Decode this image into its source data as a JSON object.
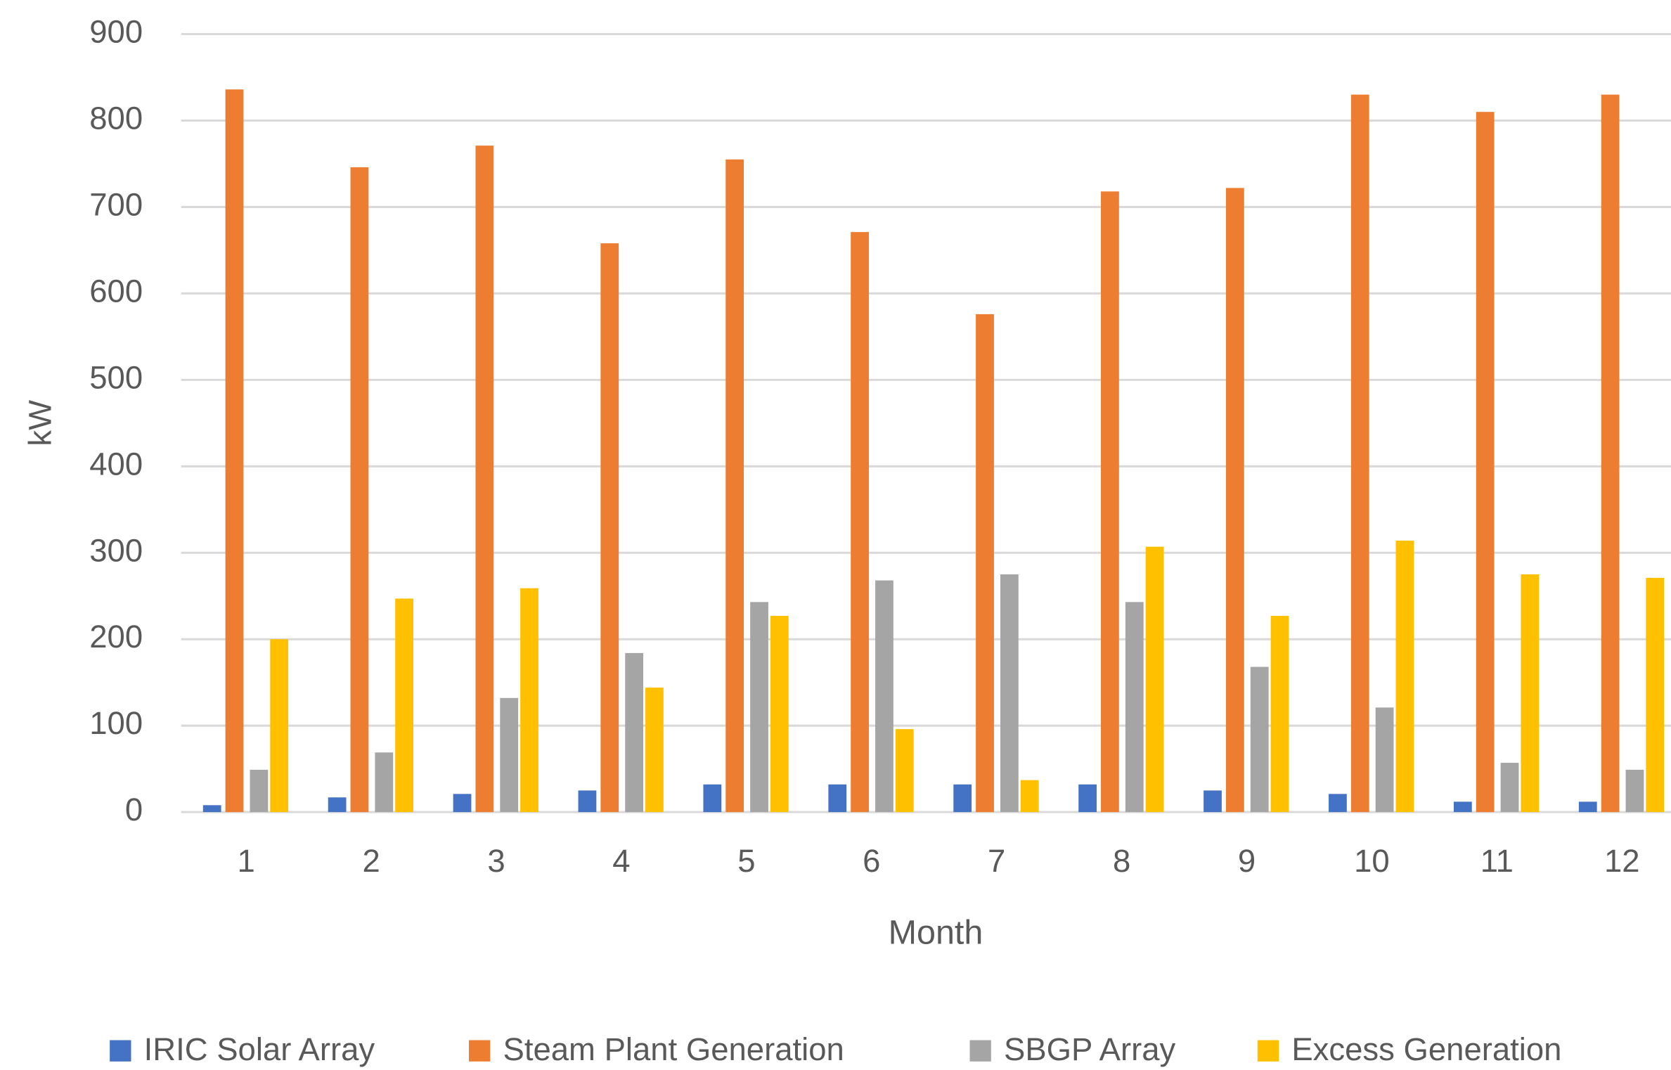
{
  "chart_data": {
    "type": "bar",
    "x_label": "Month",
    "y_label": "kW",
    "categories": [
      "1",
      "2",
      "3",
      "4",
      "5",
      "6",
      "7",
      "8",
      "9",
      "10",
      "11",
      "12"
    ],
    "series": [
      {
        "name": "IRIC Solar Array",
        "color": "#4472c4",
        "values": [
          8,
          17,
          21,
          25,
          32,
          32,
          32,
          32,
          25,
          21,
          12,
          12
        ]
      },
      {
        "name": "Steam Plant Generation",
        "color": "#ed7d31",
        "values": [
          836,
          746,
          771,
          658,
          755,
          671,
          576,
          718,
          722,
          830,
          810,
          830
        ]
      },
      {
        "name": "SBGP Array",
        "color": "#a5a5a5",
        "values": [
          49,
          69,
          132,
          184,
          243,
          268,
          275,
          243,
          168,
          121,
          57,
          49
        ]
      },
      {
        "name": "Excess Generation",
        "color": "#ffc000",
        "values": [
          200,
          247,
          259,
          144,
          227,
          96,
          37,
          307,
          227,
          314,
          275,
          271
        ]
      }
    ],
    "ylim": [
      0,
      900
    ],
    "yticks": [
      0,
      100,
      200,
      300,
      400,
      500,
      600,
      700,
      800,
      900
    ],
    "grid": true,
    "legend": "bottom"
  }
}
